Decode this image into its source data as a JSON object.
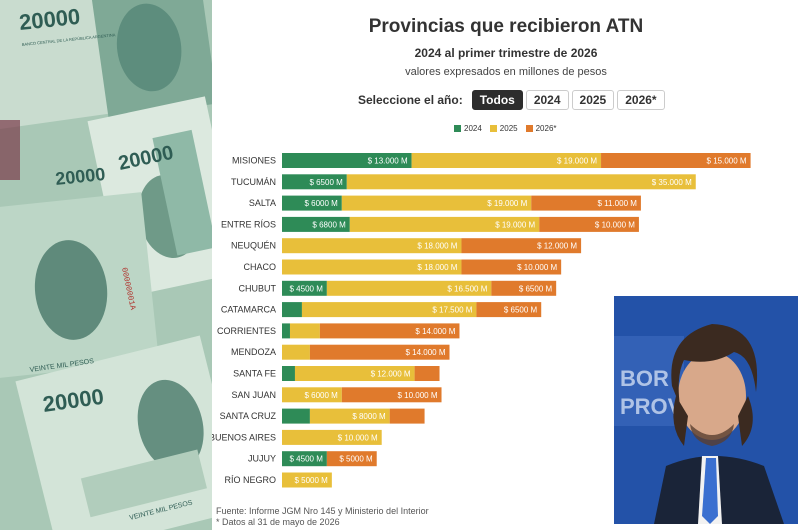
{
  "header": {
    "title": "Provincias que recibieron ATN",
    "subtitle": "2024 al primer trimestre de 2026",
    "units_note": "valores expresados en millones de pesos"
  },
  "year_selector": {
    "label": "Seleccione el año:",
    "options": [
      "Todos",
      "2024",
      "2025",
      "2026*"
    ],
    "selected": "Todos"
  },
  "footer": {
    "source": "Fuente: Informe JGM Nro 145 y Ministerio del Interior",
    "note": "* Datos al 31 de mayo de 2026"
  },
  "banknote": {
    "denomination": "20000",
    "central_bank": "BANCO CENTRAL DE LA REPÚBLICA ARGENTINA",
    "serial": "00000001A",
    "footer_text": "VEINTE MIL PESOS"
  },
  "photo": {
    "sign_text": [
      "BOR",
      "PROV"
    ]
  },
  "colors": {
    "2024": "#2e8b57",
    "2025": "#e8bf3a",
    "2026*": "#e07a2c"
  },
  "chart_data": {
    "type": "bar",
    "orientation": "horizontal",
    "stacked": true,
    "title": "Provincias que recibieron ATN",
    "subtitle": "2024 al primer trimestre de 2026",
    "grid": false,
    "legend_position": "top",
    "categories": [
      "MISIONES",
      "TUCUMÁN",
      "SALTA",
      "ENTRE RÍOS",
      "NEUQUÉN",
      "CHACO",
      "CHUBUT",
      "CATAMARCA",
      "CORRIENTES",
      "MENDOZA",
      "SANTA FE",
      "SAN JUAN",
      "SANTA CRUZ",
      "BUENOS AIRES",
      "JUJUY",
      "RÍO NEGRO"
    ],
    "series": [
      {
        "name": "2024",
        "values": [
          13000,
          6500,
          6000,
          6800,
          0,
          0,
          4500,
          2000,
          800,
          0,
          1300,
          0,
          2800,
          0,
          4500,
          0
        ]
      },
      {
        "name": "2025",
        "values": [
          19000,
          35000,
          19000,
          19000,
          18000,
          18000,
          16500,
          17500,
          3000,
          2800,
          12000,
          6000,
          8000,
          10000,
          0,
          5000
        ]
      },
      {
        "name": "2026*",
        "values": [
          15000,
          0,
          11000,
          10000,
          12000,
          10000,
          6500,
          6500,
          14000,
          14000,
          2500,
          10000,
          3500,
          0,
          5000,
          0
        ]
      }
    ],
    "data_labels": [
      [
        "$ 13.000 M",
        "$ 19.000 M",
        "$ 15.000 M"
      ],
      [
        "$ 6500 M",
        "$ 35.000 M",
        ""
      ],
      [
        "$ 6000 M",
        "$ 19.000 M",
        "$ 11.000 M"
      ],
      [
        "$ 6800 M",
        "$ 19.000 M",
        "$ 10.000 M"
      ],
      [
        "",
        "$ 18.000 M",
        "$ 12.000 M"
      ],
      [
        "",
        "$ 18.000 M",
        "$ 10.000 M"
      ],
      [
        "$ 4500 M",
        "$ 16.500 M",
        "$ 6500 M"
      ],
      [
        "",
        "$ 17.500 M",
        "$ 6500 M"
      ],
      [
        "",
        "",
        "$ 14.000 M"
      ],
      [
        "",
        "",
        "$ 14.000 M"
      ],
      [
        "",
        "$ 12.000 M",
        ""
      ],
      [
        "",
        "$ 6000 M",
        "$ 10.000 M"
      ],
      [
        "",
        "$ 8000 M",
        ""
      ],
      [
        "",
        "$ 10.000 M",
        ""
      ],
      [
        "$ 4500 M",
        "",
        "$ 5000 M"
      ],
      [
        "",
        "$ 5000 M",
        ""
      ]
    ]
  }
}
